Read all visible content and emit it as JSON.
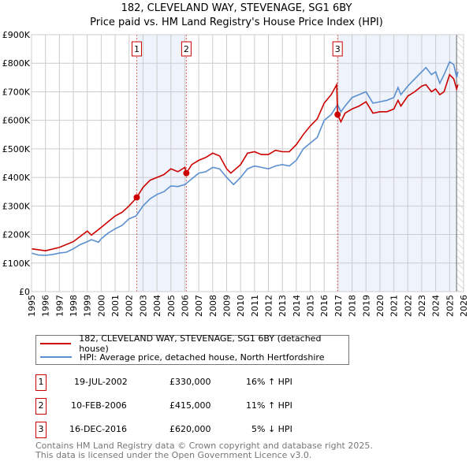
{
  "chart_data": {
    "type": "line",
    "title": "182, CLEVELAND WAY, STEVENAGE, SG1 6BY",
    "subtitle": "Price paid vs. HM Land Registry's House Price Index (HPI)",
    "xlim": [
      1995,
      2026
    ],
    "ylim": [
      0,
      900000
    ],
    "x_ticks": [
      "1995",
      "1996",
      "1997",
      "1998",
      "1999",
      "2000",
      "2001",
      "2002",
      "2003",
      "2004",
      "2005",
      "2006",
      "2007",
      "2008",
      "2009",
      "2010",
      "2011",
      "2012",
      "2013",
      "2014",
      "2015",
      "2016",
      "2017",
      "2018",
      "2019",
      "2020",
      "2021",
      "2022",
      "2023",
      "2024",
      "2025",
      "2026"
    ],
    "y_ticks": [
      {
        "v": 0,
        "label": "£0"
      },
      {
        "v": 100000,
        "label": "£100K"
      },
      {
        "v": 200000,
        "label": "£200K"
      },
      {
        "v": 300000,
        "label": "£300K"
      },
      {
        "v": 400000,
        "label": "£400K"
      },
      {
        "v": 500000,
        "label": "£500K"
      },
      {
        "v": 600000,
        "label": "£600K"
      },
      {
        "v": 700000,
        "label": "£700K"
      },
      {
        "v": 800000,
        "label": "£800K"
      },
      {
        "v": 900000,
        "label": "£900K"
      }
    ],
    "grid": true,
    "series": [
      {
        "name": "182, CLEVELAND WAY, STEVENAGE, SG1 6BY (detached house)",
        "color": "#cc0000",
        "x": [
          1995,
          1996,
          1997,
          1998,
          1999,
          1999.3,
          2000,
          2000.5,
          2001,
          2001.5,
          2002,
          2002.55,
          2003,
          2003.5,
          2004,
          2004.5,
          2005,
          2005.5,
          2006,
          2006.11,
          2006.5,
          2007,
          2007.5,
          2008,
          2008.5,
          2009,
          2009.3,
          2010,
          2010.5,
          2011,
          2011.5,
          2012,
          2012.5,
          2013,
          2013.5,
          2014,
          2014.5,
          2015,
          2015.5,
          2016,
          2016.5,
          2016.9,
          2016.96,
          2017.2,
          2017.5,
          2018,
          2018.5,
          2019,
          2019.5,
          2020,
          2020.5,
          2021,
          2021.3,
          2021.5,
          2022,
          2022.5,
          2023,
          2023.3,
          2023.7,
          2024,
          2024.3,
          2024.6,
          2025,
          2025.3,
          2025.5,
          2025.6
        ],
        "y": [
          150,
          143,
          155,
          175,
          212,
          198,
          225,
          245,
          265,
          278,
          300,
          330,
          365,
          390,
          400,
          410,
          430,
          420,
          435,
          415,
          445,
          460,
          470,
          485,
          475,
          430,
          415,
          445,
          485,
          490,
          480,
          480,
          495,
          490,
          490,
          515,
          550,
          580,
          605,
          660,
          690,
          725,
          620,
          595,
          625,
          640,
          650,
          665,
          625,
          630,
          630,
          640,
          670,
          650,
          685,
          700,
          720,
          725,
          700,
          710,
          690,
          700,
          760,
          745,
          710,
          725
        ]
      },
      {
        "name": "HPI: Average price, detached house, North Hertfordshire",
        "color": "#5b8fd0",
        "x": [
          1995,
          1995.5,
          1996,
          1996.5,
          1997,
          1997.5,
          1998,
          1998.5,
          1999,
          1999.3,
          1999.8,
          2000,
          2000.5,
          2001,
          2001.5,
          2002,
          2002.5,
          2003,
          2003.5,
          2004,
          2004.5,
          2005,
          2005.5,
          2006,
          2006.5,
          2007,
          2007.5,
          2008,
          2008.5,
          2009,
          2009.5,
          2010,
          2010.5,
          2011,
          2011.5,
          2012,
          2012.5,
          2013,
          2013.5,
          2014,
          2014.5,
          2015,
          2015.5,
          2016,
          2016.5,
          2016.96,
          2017.2,
          2017.5,
          2018,
          2018.5,
          2019,
          2019.5,
          2020,
          2020.5,
          2021,
          2021.3,
          2021.5,
          2022,
          2022.5,
          2023,
          2023.3,
          2023.7,
          2024,
          2024.3,
          2024.6,
          2025,
          2025.3,
          2025.5,
          2025.6
        ],
        "y": [
          135,
          128,
          127,
          130,
          135,
          138,
          150,
          165,
          175,
          182,
          173,
          185,
          205,
          220,
          232,
          255,
          265,
          300,
          325,
          340,
          350,
          370,
          368,
          375,
          395,
          415,
          420,
          435,
          430,
          400,
          375,
          400,
          430,
          440,
          435,
          430,
          440,
          445,
          440,
          460,
          500,
          520,
          540,
          600,
          620,
          655,
          630,
          650,
          680,
          690,
          700,
          660,
          665,
          670,
          680,
          715,
          690,
          720,
          745,
          770,
          785,
          760,
          770,
          730,
          760,
          805,
          795,
          750,
          770
        ]
      }
    ],
    "y_unit": "thousands GBP",
    "sales": [
      {
        "label": "1",
        "x": 2002.55,
        "y": 330
      },
      {
        "label": "2",
        "x": 2006.11,
        "y": 415
      },
      {
        "label": "3",
        "x": 2016.96,
        "y": 620
      }
    ],
    "shaded_ranges": [
      [
        2002.55,
        2006.11
      ],
      [
        2016.96,
        2025.5
      ]
    ],
    "forecast_hatch_from": 2025.5,
    "legend_placement": "below"
  },
  "table": [
    {
      "num": "1",
      "date": "19-JUL-2002",
      "price": "£330,000",
      "hpi": "16% ↑ HPI"
    },
    {
      "num": "2",
      "date": "10-FEB-2006",
      "price": "£415,000",
      "hpi": "11% ↑ HPI"
    },
    {
      "num": "3",
      "date": "16-DEC-2016",
      "price": "£620,000",
      "hpi": "5% ↓ HPI"
    }
  ],
  "footer": [
    "Contains HM Land Registry data © Crown copyright and database right 2025.",
    "This data is licensed under the Open Government Licence v3.0."
  ]
}
